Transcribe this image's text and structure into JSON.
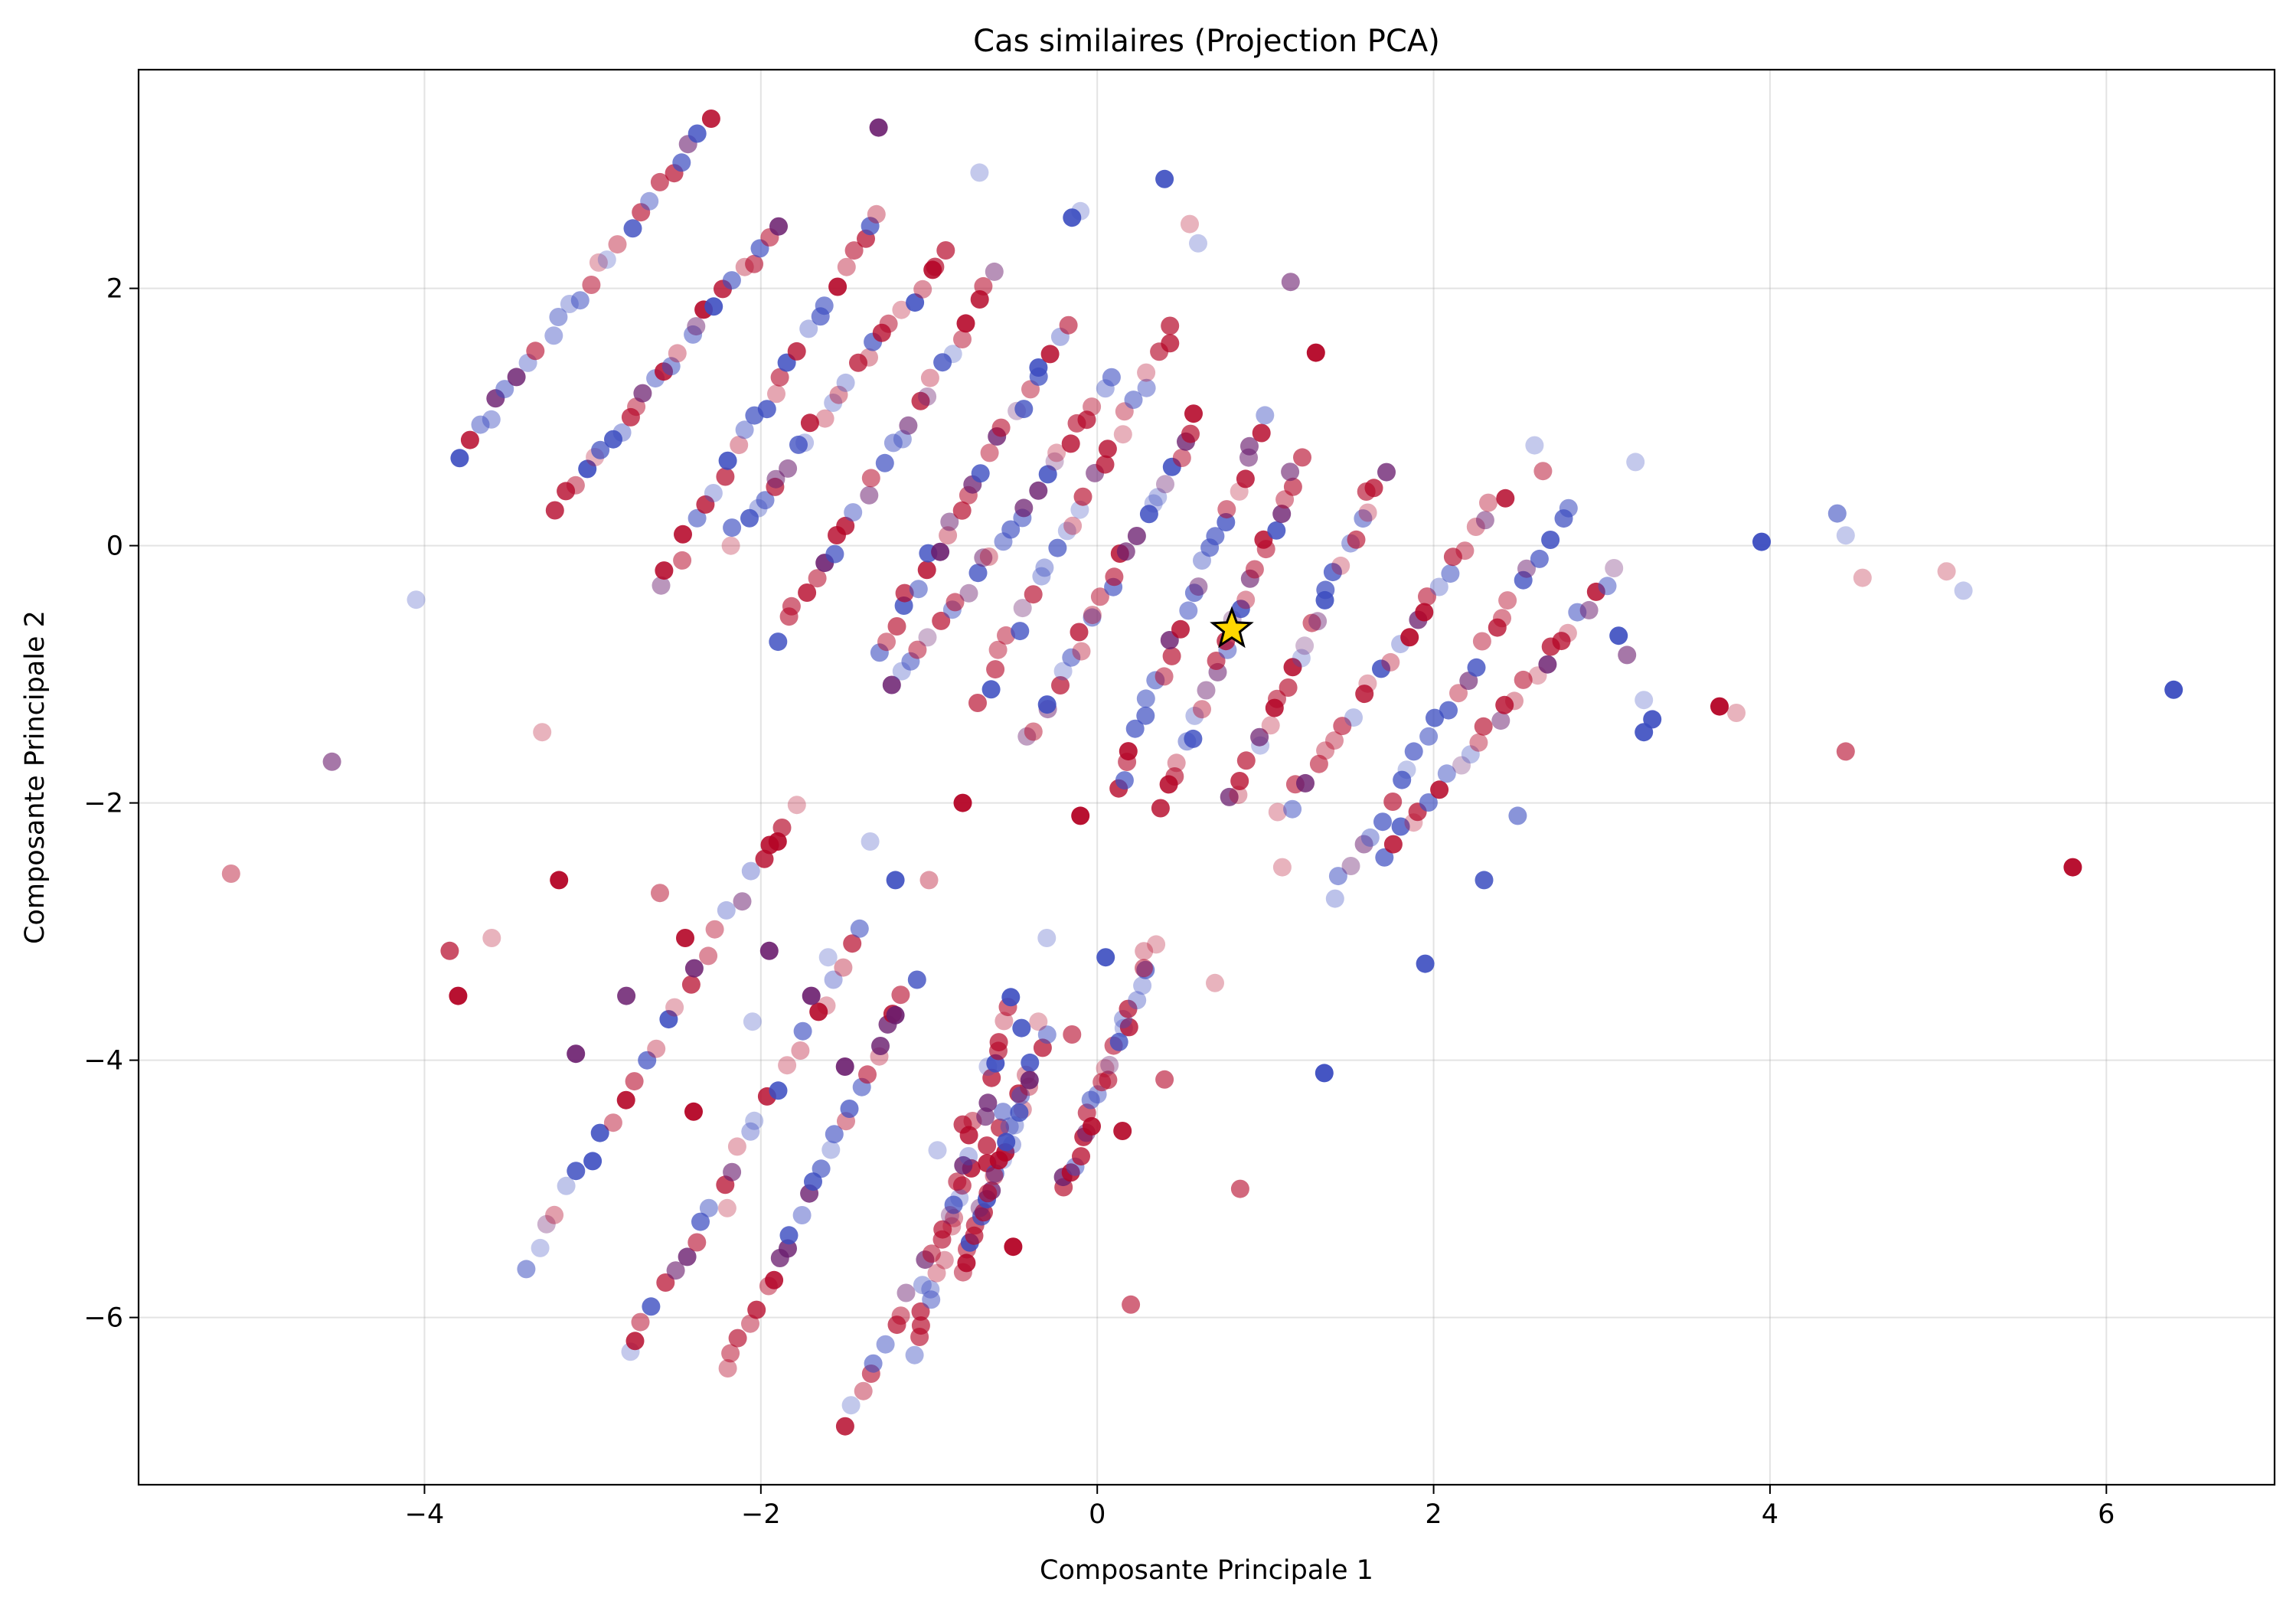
{
  "chart_data": {
    "type": "scatter",
    "title": "Cas similaires (Projection PCA)",
    "xlabel": "Composante Principale 1",
    "ylabel": "Composante Principale 2",
    "xlim": [
      -5.7,
      7.0
    ],
    "ylim": [
      -7.3,
      3.7
    ],
    "x_ticks": [
      -4,
      -2,
      0,
      2,
      4,
      6
    ],
    "y_ticks": [
      -6,
      -4,
      -2,
      0,
      2
    ],
    "x_tick_labels": [
      "−4",
      "−2",
      "0",
      "2",
      "4",
      "6"
    ],
    "y_tick_labels": [
      "−6",
      "−4",
      "−2",
      "0",
      "2"
    ],
    "grid": true,
    "colormap": "coolwarm",
    "colors": {
      "blue": "#3b4cc0",
      "red": "#b40426",
      "star": "#ffd700"
    },
    "point_alpha_range": [
      0.3,
      0.9
    ],
    "highlighted_point": {
      "x": 0.8,
      "y": -0.65,
      "marker": "star"
    },
    "diagonal_strands": [
      {
        "x0": -3.8,
        "y0": 0.7,
        "x1": -2.3,
        "y1": 3.3
      },
      {
        "x0": -3.2,
        "y0": 0.3,
        "x1": -1.9,
        "y1": 2.5
      },
      {
        "x0": -2.6,
        "y0": -0.3,
        "x1": -1.3,
        "y1": 2.6
      },
      {
        "x0": -2.2,
        "y0": 0.0,
        "x1": -0.9,
        "y1": 2.3
      },
      {
        "x0": -1.9,
        "y0": -0.7,
        "x1": -0.6,
        "y1": 2.1
      },
      {
        "x0": -1.3,
        "y0": -0.8,
        "x1": -0.2,
        "y1": 1.7
      },
      {
        "x0": -1.2,
        "y0": -1.1,
        "x1": 0.1,
        "y1": 1.3
      },
      {
        "x0": -0.7,
        "y0": -1.2,
        "x1": 0.45,
        "y1": 1.7
      },
      {
        "x0": -0.4,
        "y0": -1.5,
        "x1": 0.6,
        "y1": 1.0
      },
      {
        "x0": 0.1,
        "y0": -1.9,
        "x1": 1.0,
        "y1": 1.0
      },
      {
        "x0": 0.4,
        "y0": -2.0,
        "x1": 1.2,
        "y1": 0.7
      },
      {
        "x0": 0.8,
        "y0": -2.0,
        "x1": 1.7,
        "y1": 0.6
      },
      {
        "x0": 1.1,
        "y0": -2.1,
        "x1": 2.4,
        "y1": 0.4
      },
      {
        "x0": 1.4,
        "y0": -2.7,
        "x1": 2.8,
        "y1": 0.3
      },
      {
        "x0": 1.7,
        "y0": -2.4,
        "x1": 3.1,
        "y1": -0.2
      },
      {
        "x0": -3.4,
        "y0": -5.6,
        "x1": -1.8,
        "y1": -2.0
      },
      {
        "x0": -2.8,
        "y0": -6.3,
        "x1": -1.4,
        "y1": -3.0
      },
      {
        "x0": -2.2,
        "y0": -6.4,
        "x1": -1.1,
        "y1": -3.4
      },
      {
        "x0": -1.5,
        "y0": -6.8,
        "x1": -0.3,
        "y1": -3.8
      },
      {
        "x0": -1.1,
        "y0": -6.3,
        "x1": -0.5,
        "y1": -3.5
      },
      {
        "x0": -0.8,
        "y0": -5.6,
        "x1": -0.4,
        "y1": -4.2
      },
      {
        "x0": -0.2,
        "y0": -5.0,
        "x1": 0.3,
        "y1": -3.2
      }
    ],
    "outliers": [
      {
        "x": -5.15,
        "y": -2.55,
        "c": "red",
        "a": 0.45
      },
      {
        "x": -4.55,
        "y": -1.68,
        "c": "purple",
        "a": 0.6
      },
      {
        "x": -4.05,
        "y": -0.42,
        "c": "blue",
        "a": 0.3
      },
      {
        "x": -3.8,
        "y": -3.5,
        "c": "red",
        "a": 0.95
      },
      {
        "x": -3.85,
        "y": -3.15,
        "c": "red",
        "a": 0.7
      },
      {
        "x": -3.6,
        "y": -3.05,
        "c": "red",
        "a": 0.3
      },
      {
        "x": -3.3,
        "y": -1.45,
        "c": "red",
        "a": 0.3
      },
      {
        "x": -3.2,
        "y": -2.6,
        "c": "red",
        "a": 0.95
      },
      {
        "x": -3.1,
        "y": -3.95,
        "c": "purple",
        "a": 0.9
      },
      {
        "x": -2.8,
        "y": -3.5,
        "c": "purple",
        "a": 0.85
      },
      {
        "x": -2.6,
        "y": -2.7,
        "c": "red",
        "a": 0.5
      },
      {
        "x": -2.4,
        "y": -4.4,
        "c": "red",
        "a": 0.95
      },
      {
        "x": -2.45,
        "y": -3.05,
        "c": "red",
        "a": 0.9
      },
      {
        "x": -2.2,
        "y": -5.15,
        "c": "red",
        "a": 0.3
      },
      {
        "x": -2.05,
        "y": -3.7,
        "c": "blue",
        "a": 0.3
      },
      {
        "x": -1.9,
        "y": -2.3,
        "c": "red",
        "a": 0.9
      },
      {
        "x": -1.95,
        "y": -3.15,
        "c": "purple",
        "a": 0.9
      },
      {
        "x": -1.7,
        "y": -3.5,
        "c": "purple",
        "a": 0.9
      },
      {
        "x": -1.6,
        "y": -3.2,
        "c": "blue",
        "a": 0.3
      },
      {
        "x": -1.5,
        "y": -4.05,
        "c": "purple",
        "a": 0.9
      },
      {
        "x": -1.35,
        "y": -2.3,
        "c": "blue",
        "a": 0.3
      },
      {
        "x": -1.2,
        "y": -2.6,
        "c": "blue",
        "a": 0.9
      },
      {
        "x": -1.2,
        "y": -3.65,
        "c": "purple",
        "a": 0.9
      },
      {
        "x": -1.0,
        "y": -2.6,
        "c": "red",
        "a": 0.4
      },
      {
        "x": -0.95,
        "y": -4.7,
        "c": "blue",
        "a": 0.3
      },
      {
        "x": -0.8,
        "y": -4.5,
        "c": "red",
        "a": 0.7
      },
      {
        "x": -0.8,
        "y": -2.0,
        "c": "red",
        "a": 0.95
      },
      {
        "x": -0.5,
        "y": -5.45,
        "c": "red",
        "a": 0.95
      },
      {
        "x": -0.65,
        "y": -4.05,
        "c": "blue",
        "a": 0.3
      },
      {
        "x": -0.45,
        "y": -3.75,
        "c": "blue",
        "a": 0.85
      },
      {
        "x": -0.3,
        "y": -3.05,
        "c": "blue",
        "a": 0.3
      },
      {
        "x": -0.35,
        "y": -3.7,
        "c": "red",
        "a": 0.3
      },
      {
        "x": -0.15,
        "y": -3.8,
        "c": "red",
        "a": 0.6
      },
      {
        "x": -0.1,
        "y": -2.1,
        "c": "red",
        "a": 0.95
      },
      {
        "x": 0.05,
        "y": -3.2,
        "c": "blue",
        "a": 0.9
      },
      {
        "x": 0.15,
        "y": -4.55,
        "c": "red",
        "a": 0.9
      },
      {
        "x": 0.2,
        "y": -5.9,
        "c": "red",
        "a": 0.6
      },
      {
        "x": 0.35,
        "y": -3.1,
        "c": "red",
        "a": 0.3
      },
      {
        "x": 0.4,
        "y": -4.15,
        "c": "red",
        "a": 0.6
      },
      {
        "x": 0.7,
        "y": -3.4,
        "c": "red",
        "a": 0.3
      },
      {
        "x": 0.85,
        "y": -5.0,
        "c": "red",
        "a": 0.6
      },
      {
        "x": 1.1,
        "y": -2.5,
        "c": "red",
        "a": 0.3
      },
      {
        "x": 1.35,
        "y": -4.1,
        "c": "blue",
        "a": 0.95
      },
      {
        "x": 1.3,
        "y": 1.5,
        "c": "red",
        "a": 0.95
      },
      {
        "x": 1.15,
        "y": 2.05,
        "c": "purple",
        "a": 0.6
      },
      {
        "x": 0.55,
        "y": 2.5,
        "c": "red",
        "a": 0.3
      },
      {
        "x": 0.6,
        "y": 2.35,
        "c": "blue",
        "a": 0.3
      },
      {
        "x": 0.4,
        "y": 2.85,
        "c": "blue",
        "a": 0.9
      },
      {
        "x": -0.1,
        "y": 2.6,
        "c": "blue",
        "a": 0.3
      },
      {
        "x": -0.15,
        "y": 2.55,
        "c": "blue",
        "a": 0.9
      },
      {
        "x": -0.7,
        "y": 2.9,
        "c": "blue",
        "a": 0.3
      },
      {
        "x": -1.3,
        "y": 3.25,
        "c": "purple",
        "a": 0.9
      },
      {
        "x": 1.95,
        "y": -3.25,
        "c": "blue",
        "a": 0.9
      },
      {
        "x": 2.3,
        "y": -2.6,
        "c": "blue",
        "a": 0.85
      },
      {
        "x": 2.5,
        "y": -2.1,
        "c": "blue",
        "a": 0.6
      },
      {
        "x": 2.6,
        "y": 0.78,
        "c": "blue",
        "a": 0.3
      },
      {
        "x": 2.65,
        "y": 0.58,
        "c": "red",
        "a": 0.5
      },
      {
        "x": 3.2,
        "y": 0.65,
        "c": "blue",
        "a": 0.3
      },
      {
        "x": 3.1,
        "y": -0.7,
        "c": "blue",
        "a": 0.9
      },
      {
        "x": 3.15,
        "y": -0.85,
        "c": "purple",
        "a": 0.6
      },
      {
        "x": 3.25,
        "y": -1.45,
        "c": "blue",
        "a": 0.9
      },
      {
        "x": 3.25,
        "y": -1.2,
        "c": "blue",
        "a": 0.3
      },
      {
        "x": 3.3,
        "y": -1.35,
        "c": "blue",
        "a": 0.9
      },
      {
        "x": 3.7,
        "y": -1.25,
        "c": "red",
        "a": 0.95
      },
      {
        "x": 3.8,
        "y": -1.3,
        "c": "red",
        "a": 0.3
      },
      {
        "x": 3.95,
        "y": 0.03,
        "c": "blue",
        "a": 0.95
      },
      {
        "x": 4.4,
        "y": 0.25,
        "c": "blue",
        "a": 0.6
      },
      {
        "x": 4.45,
        "y": 0.08,
        "c": "blue",
        "a": 0.3
      },
      {
        "x": 4.45,
        "y": -1.6,
        "c": "red",
        "a": 0.6
      },
      {
        "x": 4.55,
        "y": -0.25,
        "c": "red",
        "a": 0.3
      },
      {
        "x": 5.05,
        "y": -0.2,
        "c": "red",
        "a": 0.3
      },
      {
        "x": 5.15,
        "y": -0.35,
        "c": "blue",
        "a": 0.3
      },
      {
        "x": 5.8,
        "y": -2.5,
        "c": "red",
        "a": 0.95
      },
      {
        "x": 6.4,
        "y": -1.12,
        "c": "blue",
        "a": 0.95
      }
    ]
  }
}
